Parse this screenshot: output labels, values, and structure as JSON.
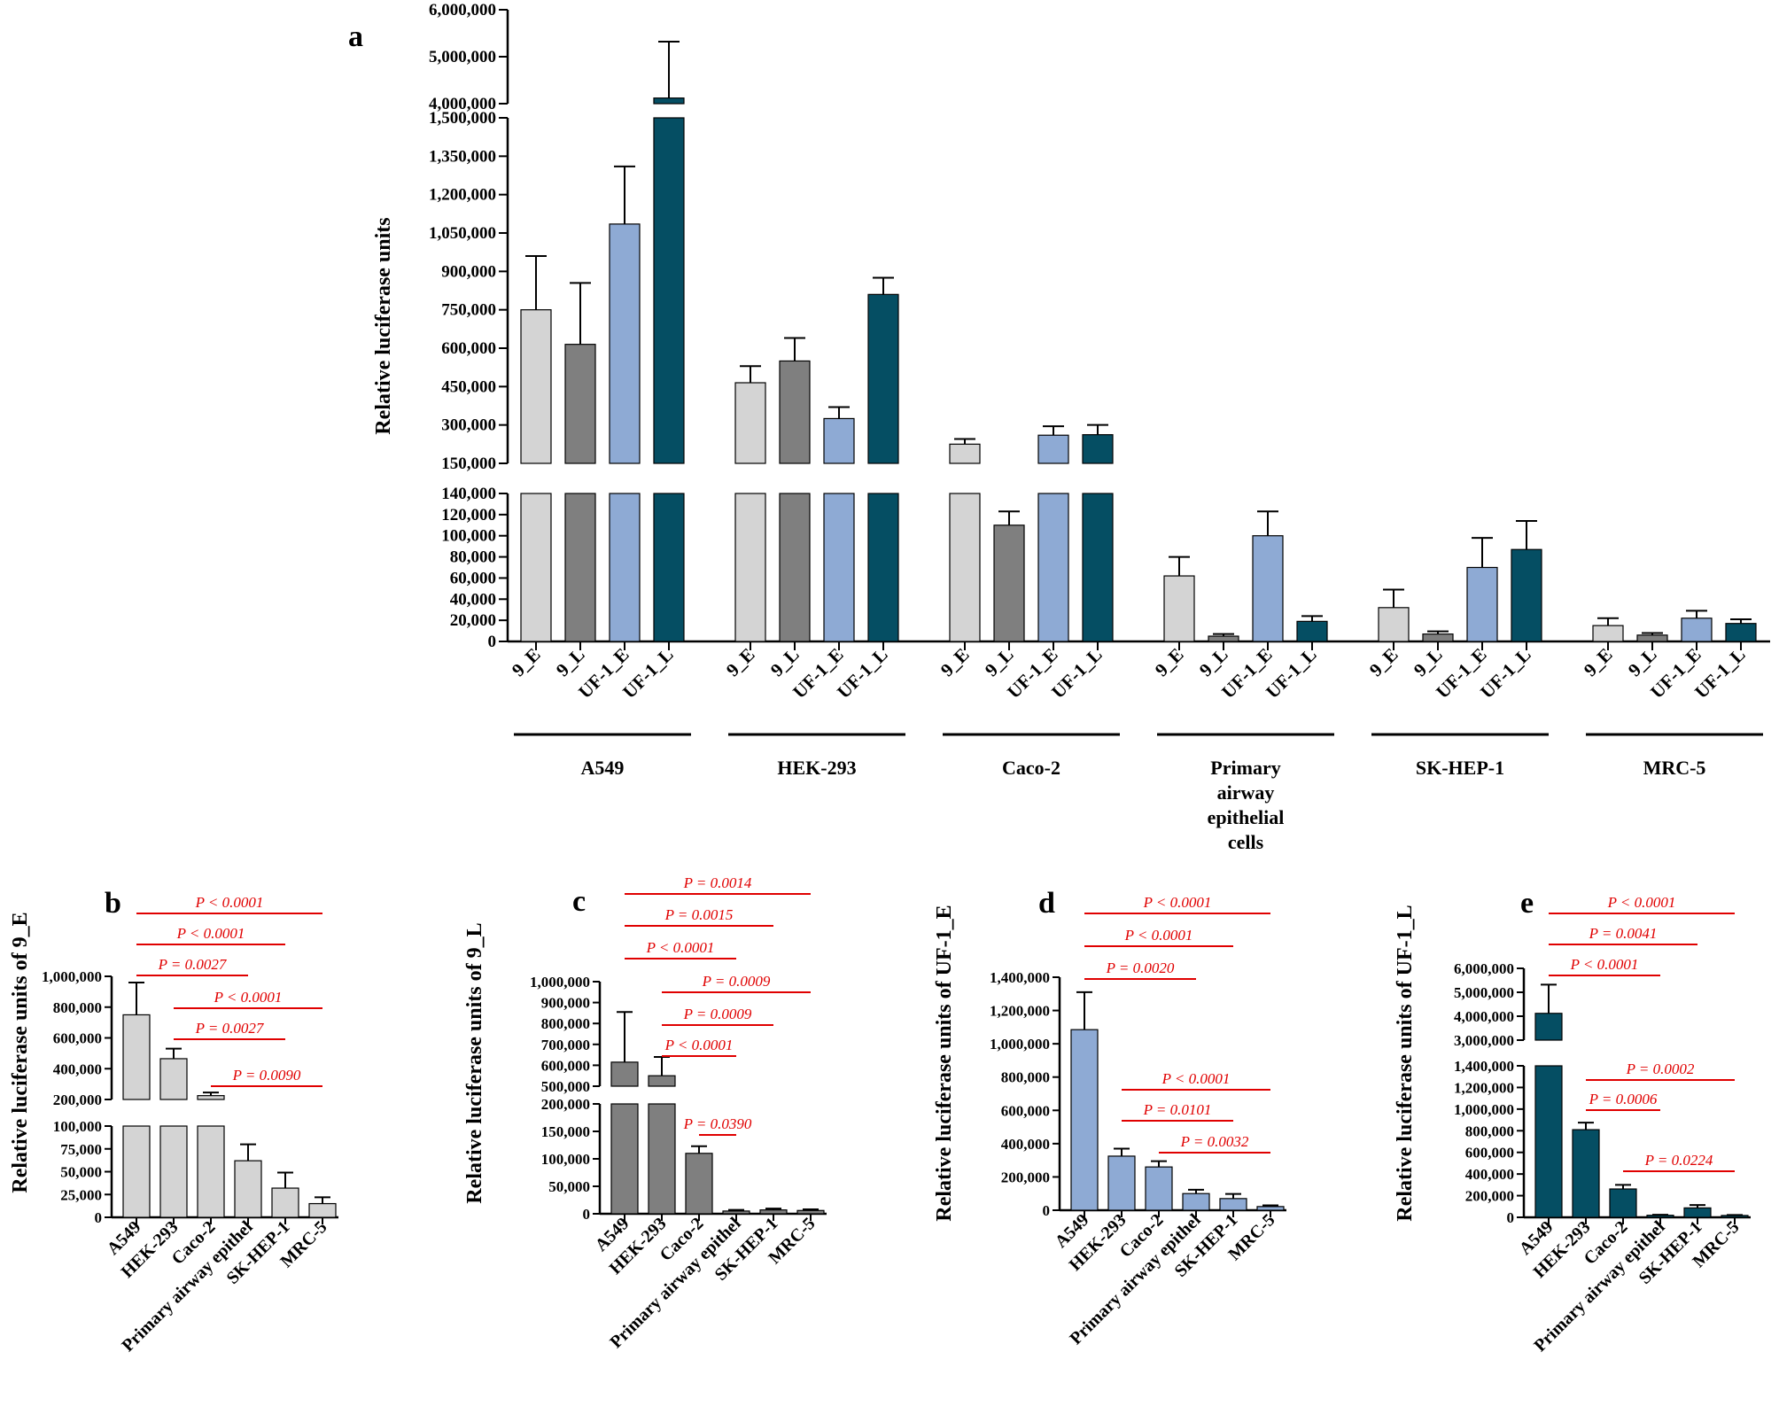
{
  "colors": {
    "9_E": "#d4d4d4",
    "9_L": "#7f7f7f",
    "UF-1_E": "#8eaad4",
    "UF-1_L": "#054e63",
    "significance": "#e00000"
  },
  "chart_data": [
    {
      "id": "a",
      "panel_label": "a",
      "type": "bar",
      "title": "",
      "ylabel": "Relative luciferase units",
      "broken_y_axis": true,
      "y_segments": [
        {
          "range": [
            0,
            140000
          ],
          "ticks": [
            "0",
            "20,000",
            "40,000",
            "60,000",
            "80,000",
            "100,000",
            "120,000",
            "140,000"
          ]
        },
        {
          "range": [
            150000,
            1500000
          ],
          "ticks": [
            "150,000",
            "300,000",
            "450,000",
            "600,000",
            "750,000",
            "900,000",
            "1,050,000",
            "1,200,000",
            "1,350,000",
            "1,500,000"
          ]
        },
        {
          "range": [
            4000000,
            6000000
          ],
          "ticks": [
            "4,000,000",
            "5,000,000",
            "6,000,000"
          ]
        }
      ],
      "series_names": [
        "9_E",
        "9_L",
        "UF-1_E",
        "UF-1_L"
      ],
      "groups": [
        {
          "label": "A549",
          "label_lines": [
            "A549"
          ],
          "values": [
            750000,
            615000,
            1085000,
            4120000
          ],
          "errors": [
            210000,
            240000,
            225000,
            1200000
          ]
        },
        {
          "label": "HEK-293",
          "label_lines": [
            "HEK-293"
          ],
          "values": [
            465000,
            550000,
            325000,
            810000
          ],
          "errors": [
            65000,
            90000,
            45000,
            65000
          ]
        },
        {
          "label": "Caco-2",
          "label_lines": [
            "Caco-2"
          ],
          "values": [
            225000,
            110000,
            260000,
            262000
          ],
          "errors": [
            20000,
            13000,
            35000,
            38000
          ]
        },
        {
          "label": "Primary airway epithelial cells",
          "label_lines": [
            "Primary",
            "airway",
            "epithelial",
            "cells"
          ],
          "values": [
            62000,
            5000,
            100000,
            19000
          ],
          "errors": [
            18000,
            2000,
            23000,
            5000
          ]
        },
        {
          "label": "SK-HEP-1",
          "label_lines": [
            "SK-HEP-1"
          ],
          "values": [
            32000,
            7000,
            70000,
            87000
          ],
          "errors": [
            17000,
            2500,
            28000,
            27000
          ]
        },
        {
          "label": "MRC-5",
          "label_lines": [
            "MRC-5"
          ],
          "values": [
            15000,
            6000,
            22000,
            17000
          ],
          "errors": [
            7000,
            2000,
            7000,
            4000
          ]
        }
      ]
    },
    {
      "id": "b",
      "panel_label": "b",
      "type": "bar",
      "ylabel": "Relative luciferase units of 9_E",
      "broken_y_axis": true,
      "y_segments": [
        {
          "range": [
            0,
            100000
          ],
          "ticks": [
            "0",
            "25,000",
            "50,000",
            "75,000",
            "100,000"
          ]
        },
        {
          "range": [
            200000,
            1000000
          ],
          "ticks": [
            "200,000",
            "400,000",
            "600,000",
            "800,000",
            "1,000,000"
          ]
        }
      ],
      "categories": [
        "A549",
        "HEK-293",
        "Caco-2",
        "Primary airway epithel",
        "SK-HEP-1",
        "MRC-5"
      ],
      "values": [
        750000,
        465000,
        225000,
        62000,
        32000,
        15000
      ],
      "errors": [
        210000,
        65000,
        20000,
        18000,
        17000,
        7000
      ],
      "series_color_key": "9_E",
      "comparisons": [
        {
          "from": 0,
          "to": 5,
          "label": "P < 0.0001"
        },
        {
          "from": 0,
          "to": 4,
          "label": "P < 0.0001"
        },
        {
          "from": 0,
          "to": 3,
          "label": "P = 0.0027"
        },
        {
          "from": 1,
          "to": 5,
          "label": "P < 0.0001"
        },
        {
          "from": 1,
          "to": 4,
          "label": "P = 0.0027"
        },
        {
          "from": 2,
          "to": 5,
          "label": "P = 0.0090"
        }
      ]
    },
    {
      "id": "c",
      "panel_label": "c",
      "type": "bar",
      "ylabel": "Relative luciferase units of 9_L",
      "broken_y_axis": true,
      "y_segments": [
        {
          "range": [
            0,
            200000
          ],
          "ticks": [
            "0",
            "50,000",
            "100,000",
            "150,000",
            "200,000"
          ]
        },
        {
          "range": [
            500000,
            1000000
          ],
          "ticks": [
            "500,000",
            "600,000",
            "700,000",
            "800,000",
            "900,000",
            "1,000,000"
          ]
        }
      ],
      "categories": [
        "A549",
        "HEK-293",
        "Caco-2",
        "Primary airway epithel",
        "SK-HEP-1",
        "MRC-5"
      ],
      "values": [
        615000,
        550000,
        110000,
        5000,
        7000,
        6000
      ],
      "errors": [
        240000,
        90000,
        13000,
        2000,
        2500,
        2000
      ],
      "series_color_key": "9_L",
      "comparisons": [
        {
          "from": 0,
          "to": 5,
          "label": "P = 0.0014"
        },
        {
          "from": 0,
          "to": 4,
          "label": "P = 0.0015"
        },
        {
          "from": 0,
          "to": 3,
          "label": "P < 0.0001"
        },
        {
          "from": 1,
          "to": 5,
          "label": "P = 0.0009"
        },
        {
          "from": 1,
          "to": 4,
          "label": "P = 0.0009"
        },
        {
          "from": 1,
          "to": 3,
          "label": "P < 0.0001"
        },
        {
          "from": 2,
          "to": 3,
          "label": "P = 0.0390"
        }
      ]
    },
    {
      "id": "d",
      "panel_label": "d",
      "type": "bar",
      "ylabel": "Relative luciferase units of UF-1_E",
      "broken_y_axis": false,
      "y_segments": [
        {
          "range": [
            0,
            1400000
          ],
          "ticks": [
            "0",
            "200,000",
            "400,000",
            "600,000",
            "800,000",
            "1,000,000",
            "1,200,000",
            "1,400,000"
          ]
        }
      ],
      "categories": [
        "A549",
        "HEK-293",
        "Caco-2",
        "Primary airway epithel",
        "SK-HEP-1",
        "MRC-5"
      ],
      "values": [
        1085000,
        325000,
        260000,
        100000,
        70000,
        22000
      ],
      "errors": [
        225000,
        45000,
        35000,
        23000,
        28000,
        7000
      ],
      "series_color_key": "UF-1_E",
      "comparisons": [
        {
          "from": 0,
          "to": 5,
          "label": "P < 0.0001"
        },
        {
          "from": 0,
          "to": 4,
          "label": "P < 0.0001"
        },
        {
          "from": 0,
          "to": 3,
          "label": "P = 0.0020"
        },
        {
          "from": 1,
          "to": 5,
          "label": "P < 0.0001"
        },
        {
          "from": 1,
          "to": 4,
          "label": "P = 0.0101"
        },
        {
          "from": 2,
          "to": 5,
          "label": "P = 0.0032"
        }
      ]
    },
    {
      "id": "e",
      "panel_label": "e",
      "type": "bar",
      "ylabel": "Relative luciferase units of UF-1_L",
      "broken_y_axis": true,
      "y_segments": [
        {
          "range": [
            0,
            1400000
          ],
          "ticks": [
            "0",
            "200,000",
            "400,000",
            "600,000",
            "800,000",
            "1,000,000",
            "1,200,000",
            "1,400,000"
          ]
        },
        {
          "range": [
            3000000,
            6000000
          ],
          "ticks": [
            "3,000,000",
            "4,000,000",
            "5,000,000",
            "6,000,000"
          ]
        }
      ],
      "categories": [
        "A549",
        "HEK-293",
        "Caco-2",
        "Primary airway epithel",
        "SK-HEP-1",
        "MRC-5"
      ],
      "values": [
        4120000,
        810000,
        262000,
        19000,
        87000,
        17000
      ],
      "errors": [
        1200000,
        65000,
        38000,
        5000,
        27000,
        4000
      ],
      "series_color_key": "UF-1_L",
      "comparisons": [
        {
          "from": 0,
          "to": 5,
          "label": "P < 0.0001"
        },
        {
          "from": 0,
          "to": 4,
          "label": "P = 0.0041"
        },
        {
          "from": 0,
          "to": 3,
          "label": "P < 0.0001"
        },
        {
          "from": 1,
          "to": 5,
          "label": "P = 0.0002"
        },
        {
          "from": 1,
          "to": 3,
          "label": "P = 0.0006"
        },
        {
          "from": 2,
          "to": 5,
          "label": "P = 0.0224"
        }
      ]
    }
  ]
}
